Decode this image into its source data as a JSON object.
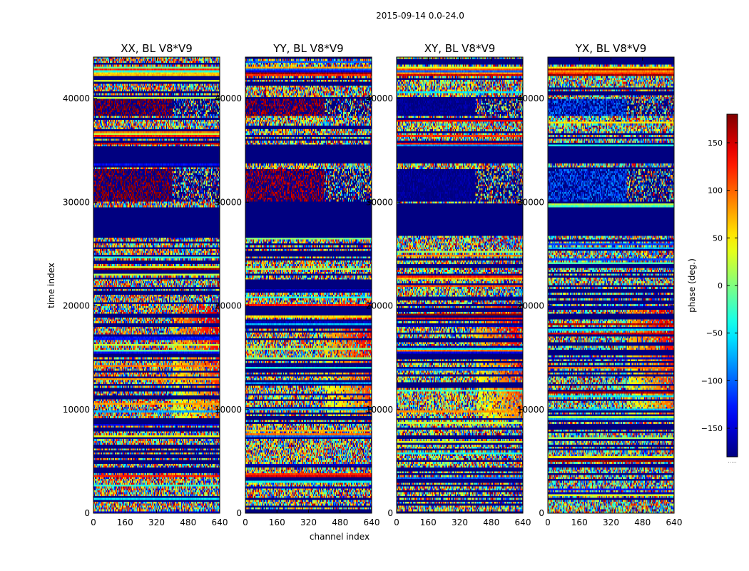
{
  "figure": {
    "suptitle": "2015-09-14 0.0-24.0",
    "xlabel": "channel index",
    "ylabel": "time index"
  },
  "colorbar": {
    "label": "phase (deg.)",
    "ticks": [
      150,
      100,
      50,
      0,
      -50,
      -100,
      -150
    ],
    "tick_labels": [
      "150",
      "100",
      "50",
      "0",
      "−50",
      "−100",
      "−150"
    ],
    "range": [
      -180,
      180
    ],
    "colormap": "jet",
    "footnote": "....."
  },
  "chart_data": [
    {
      "type": "heatmap",
      "title": "XX, BL V8*V9",
      "xlim": [
        0,
        640
      ],
      "ylim": [
        0,
        44000
      ],
      "xticks": [
        0,
        160,
        320,
        480,
        640
      ],
      "yticks": [
        0,
        10000,
        20000,
        30000,
        40000
      ],
      "ytick_labels_visible": true,
      "seed": 11,
      "features": {
        "left_phase": 95,
        "mid_phase": 175,
        "fringe_region": [
          9000,
          20000
        ]
      }
    },
    {
      "type": "heatmap",
      "title": "YY, BL V8*V9",
      "xlim": [
        0,
        640
      ],
      "ylim": [
        0,
        44000
      ],
      "xticks": [
        0,
        160,
        320,
        480,
        640
      ],
      "yticks": [
        0,
        10000,
        20000,
        30000,
        40000
      ],
      "ytick_labels_visible": true,
      "seed": 23,
      "features": {
        "left_phase": 60,
        "mid_phase": 165,
        "fringe_region": [
          9000,
          20000
        ]
      }
    },
    {
      "type": "heatmap",
      "title": "XY, BL V8*V9",
      "xlim": [
        0,
        640
      ],
      "ylim": [
        0,
        44000
      ],
      "xticks": [
        0,
        160,
        320,
        480,
        640
      ],
      "yticks": [
        0,
        10000,
        20000,
        30000,
        40000
      ],
      "ytick_labels_visible": true,
      "seed": 37,
      "features": {
        "left_phase": 30,
        "mid_phase": -175,
        "fringe_region": [
          9000,
          20000
        ]
      }
    },
    {
      "type": "heatmap",
      "title": "YX, BL V8*V9",
      "xlim": [
        0,
        640
      ],
      "ylim": [
        0,
        44000
      ],
      "xticks": [
        0,
        160,
        320,
        480,
        640
      ],
      "yticks": [
        0,
        10000,
        20000,
        30000,
        40000
      ],
      "ytick_labels_visible": true,
      "seed": 53,
      "features": {
        "left_phase": -10,
        "mid_phase": -100,
        "fringe_region": [
          9000,
          20000
        ]
      }
    }
  ]
}
